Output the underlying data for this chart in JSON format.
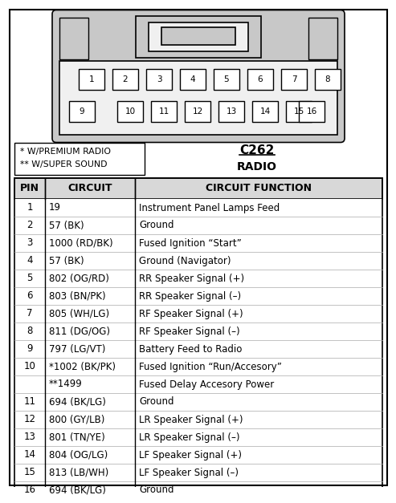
{
  "title_connector": "C262",
  "title_type": "RADIO",
  "legend_line1": "* W/PREMIUM RADIO",
  "legend_line2": "** W/SUPER SOUND",
  "col_headers": [
    "PIN",
    "CIRCUIT",
    "CIRCUIT FUNCTION"
  ],
  "rows": [
    [
      "1",
      "19",
      "Instrument Panel Lamps Feed"
    ],
    [
      "2",
      "57 (BK)",
      "Ground"
    ],
    [
      "3",
      "1000 (RD/BK)",
      "Fused Ignition “Start”"
    ],
    [
      "4",
      "57 (BK)",
      "Ground (Navigator)"
    ],
    [
      "5",
      "802 (OG/RD)",
      "RR Speaker Signal (+)"
    ],
    [
      "6",
      "803 (BN/PK)",
      "RR Speaker Signal (–)"
    ],
    [
      "7",
      "805 (WH/LG)",
      "RF Speaker Signal (+)"
    ],
    [
      "8",
      "811 (DG/OG)",
      "RF Speaker Signal (–)"
    ],
    [
      "9",
      "797 (LG/VT)",
      "Battery Feed to Radio"
    ],
    [
      "10",
      "*1002 (BK/PK)",
      "Fused Ignition “Run/Accesory”"
    ],
    [
      "",
      "**1499",
      "Fused Delay Accesory Power"
    ],
    [
      "11",
      "694 (BK/LG)",
      "Ground"
    ],
    [
      "12",
      "800 (GY/LB)",
      "LR Speaker Signal (+)"
    ],
    [
      "13",
      "801 (TN/YE)",
      "LR Speaker Signal (–)"
    ],
    [
      "14",
      "804 (OG/LG)",
      "LF Speaker Signal (+)"
    ],
    [
      "15",
      "813 (LB/WH)",
      "LF Speaker Signal (–)"
    ],
    [
      "16",
      "694 (BK/LG)",
      "Ground"
    ]
  ],
  "bg_color": "#ffffff",
  "border_color": "#000000",
  "header_bg": "#d8d8d8",
  "font_size_table": 8.5,
  "font_size_header": 9,
  "font_size_title": 11,
  "connector_color": "#c8c8c8",
  "pin_row1": [
    1,
    2,
    3,
    4,
    5,
    6,
    7,
    8
  ],
  "pin_row2_left": [
    9
  ],
  "pin_row2_mid": [
    10,
    11,
    12,
    13,
    14,
    15
  ],
  "pin_row2_right": [
    16
  ]
}
